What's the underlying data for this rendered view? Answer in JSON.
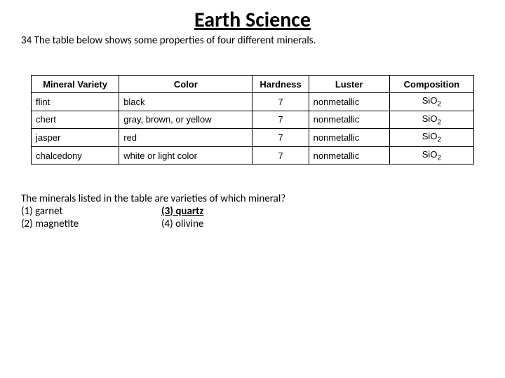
{
  "title": "Earth Science",
  "question_number": "34",
  "intro_text": "The table below shows some properties of four different minerals.",
  "table": {
    "headers": {
      "variety": "Mineral Variety",
      "color": "Color",
      "hardness": "Hardness",
      "luster": "Luster",
      "composition": "Composition"
    },
    "rows": [
      {
        "variety": "flint",
        "color": "black",
        "hardness": "7",
        "luster": "nonmetallic",
        "comp_base": "SiO",
        "comp_sub": "2"
      },
      {
        "variety": "chert",
        "color": "gray, brown, or yellow",
        "hardness": "7",
        "luster": "nonmetallic",
        "comp_base": "SiO",
        "comp_sub": "2"
      },
      {
        "variety": "jasper",
        "color": "red",
        "hardness": "7",
        "luster": "nonmetallic",
        "comp_base": "SiO",
        "comp_sub": "2"
      },
      {
        "variety": "chalcedony",
        "color": "white or light color",
        "hardness": "7",
        "luster": "nonmetallic",
        "comp_base": "SiO",
        "comp_sub": "2"
      }
    ]
  },
  "question_text": "The minerals listed in the table are varieties of which mineral?",
  "answers": {
    "a1": "(1) garnet",
    "a2": "(2) magnetite",
    "a3": "(3) quartz",
    "a4": "(4) olivine"
  },
  "correct_answer_key": "a3"
}
